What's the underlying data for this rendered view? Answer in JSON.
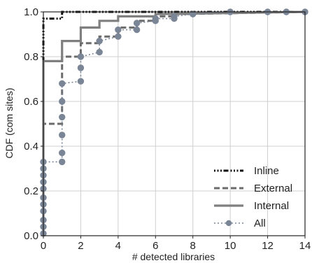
{
  "chart_data": {
    "type": "line",
    "title": "",
    "xlabel": "# detected libraries",
    "ylabel": "CDF (com sites)",
    "xlim": [
      0,
      14
    ],
    "ylim": [
      0,
      1
    ],
    "xticks": [
      0,
      2,
      4,
      6,
      8,
      10,
      12,
      14
    ],
    "yticks": [
      0.0,
      0.2,
      0.4,
      0.6,
      0.8,
      1.0
    ],
    "xtick_labels": [
      "0",
      "2",
      "4",
      "6",
      "8",
      "10",
      "12",
      "14"
    ],
    "ytick_labels": [
      "0.0",
      "0.2",
      "0.4",
      "0.6",
      "0.8",
      "1.0"
    ],
    "grid": true,
    "legend_position": "bottom-right",
    "series": [
      {
        "name": "Inline",
        "style": "dashdotdot",
        "color": "#111111",
        "x": [
          0,
          0,
          1,
          1,
          14
        ],
        "y": [
          0,
          0.97,
          0.97,
          1.0,
          1.0
        ]
      },
      {
        "name": "External",
        "style": "dashed",
        "color": "#6b6b6b",
        "x": [
          0,
          0,
          1,
          1,
          2,
          2,
          3,
          3,
          4,
          4,
          5,
          5,
          6,
          6,
          7,
          7,
          14
        ],
        "y": [
          0,
          0.5,
          0.5,
          0.8,
          0.8,
          0.86,
          0.86,
          0.89,
          0.89,
          0.93,
          0.93,
          0.96,
          0.96,
          0.98,
          0.98,
          0.99,
          1.0
        ]
      },
      {
        "name": "Internal",
        "style": "solid",
        "color": "#7f7f7f",
        "x": [
          0,
          0,
          1,
          1,
          2,
          2,
          3,
          3,
          4,
          4,
          6,
          6,
          14
        ],
        "y": [
          0,
          0.78,
          0.78,
          0.87,
          0.87,
          0.93,
          0.93,
          0.96,
          0.96,
          0.98,
          0.98,
          0.99,
          1.0
        ]
      },
      {
        "name": "All",
        "style": "dotted-markers",
        "color": "#7a8596",
        "points": [
          [
            0,
            0.01
          ],
          [
            0,
            0.04
          ],
          [
            0,
            0.07
          ],
          [
            0,
            0.11
          ],
          [
            0,
            0.14
          ],
          [
            0,
            0.17
          ],
          [
            0,
            0.21
          ],
          [
            0,
            0.24
          ],
          [
            0,
            0.27
          ],
          [
            0,
            0.3
          ],
          [
            0,
            0.33
          ],
          [
            1,
            0.33
          ],
          [
            1,
            0.37
          ],
          [
            1,
            0.45
          ],
          [
            1,
            0.53
          ],
          [
            1,
            0.6
          ],
          [
            1,
            0.68
          ],
          [
            2,
            0.69
          ],
          [
            2,
            0.75
          ],
          [
            2,
            0.8
          ],
          [
            3,
            0.82
          ],
          [
            3,
            0.87
          ],
          [
            4,
            0.89
          ],
          [
            4,
            0.92
          ],
          [
            5,
            0.92
          ],
          [
            5,
            0.95
          ],
          [
            6,
            0.96
          ],
          [
            6,
            0.97
          ],
          [
            7,
            0.97
          ],
          [
            7,
            0.98
          ],
          [
            8,
            0.99
          ],
          [
            10,
            1.0
          ],
          [
            12,
            1.0
          ],
          [
            13,
            1.0
          ],
          [
            14,
            1.0
          ]
        ]
      }
    ]
  }
}
